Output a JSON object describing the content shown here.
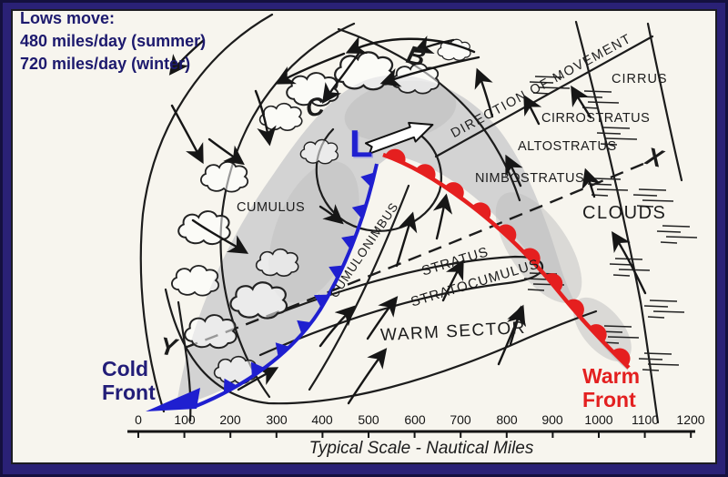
{
  "colors": {
    "border_navy": "#2a2176",
    "paper": "#f7f5ee",
    "info_text_navy": "#1d1a6e",
    "cold_front_blue": "#1f1fd0",
    "warm_front_red": "#e51f1f",
    "cloud_mass_gray": "#d3d3d3",
    "ink": "#1c1c1c"
  },
  "info_box": {
    "title": "Lows move:",
    "line1": "480  miles/day (summer)",
    "line2": "720  miles/day (winter)"
  },
  "points": {
    "b": "B",
    "c": "C",
    "low_center": "L",
    "x": "X",
    "y": "Y"
  },
  "labels": {
    "direction": "DIRECTION OF MOVEMENT",
    "cirrus": "CIRRUS",
    "cirrostratus": "CIRROSTRATUS",
    "altostratus": "ALTOSTRATUS",
    "nimbostratus": "NIMBOSTRATUS",
    "clouds_region": "CLOUDS",
    "cumulus": "CUMULUS",
    "cumulonimbus": "CUMULONIMBUS",
    "stratus": "STRATUS",
    "stratocumulus": "STRATOCUMULUS",
    "warm_sector": "WARM SECTOR",
    "cold_front": "Cold\nFront",
    "warm_front": "Warm\nFront"
  },
  "scale": {
    "ticks": [
      "0",
      "100",
      "200",
      "300",
      "400",
      "500",
      "600",
      "700",
      "800",
      "900",
      "1000",
      "1100",
      "1200"
    ],
    "caption": "Typical Scale  -  Nautical Miles"
  }
}
